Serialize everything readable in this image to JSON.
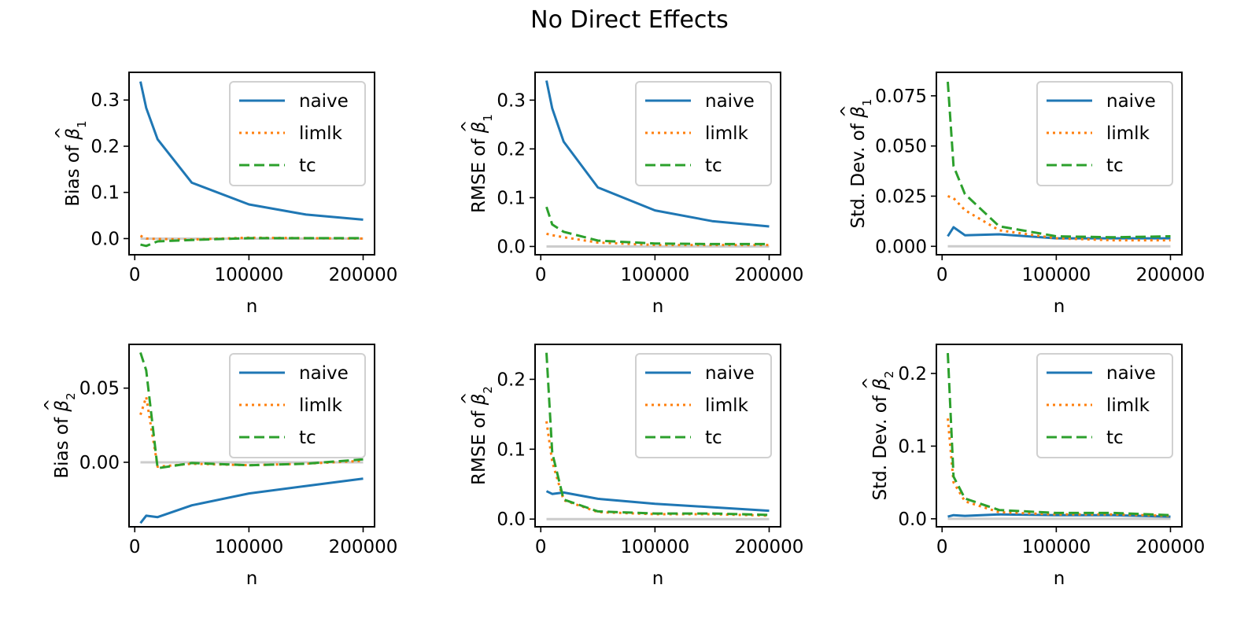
{
  "figure": {
    "title": "No Direct Effects"
  },
  "colors": {
    "naive": "#1f77b4",
    "limlk": "#ff7f0e",
    "tc": "#2ca02c",
    "zero_line": "#cccccc"
  },
  "chart_data": [
    {
      "type": "line",
      "title": "",
      "xlabel": "n",
      "ylabel_prefix": "Bias of",
      "ylabel_symbol": "β",
      "ylabel_hat": "^",
      "ylabel_sub": "1",
      "xlim": [
        -5000,
        210000
      ],
      "ylim": [
        -0.035,
        0.36
      ],
      "xticks": [
        0,
        100000,
        200000
      ],
      "xtick_labels": [
        "0",
        "100000",
        "200000"
      ],
      "yticks": [
        0.0,
        0.1,
        0.2,
        0.3
      ],
      "ytick_labels": [
        "0.0",
        "0.1",
        "0.2",
        "0.3"
      ],
      "legend": "upper right",
      "x": [
        5000,
        10000,
        20000,
        50000,
        100000,
        150000,
        200000
      ],
      "series": [
        {
          "name": "naive",
          "style": "solid",
          "values": [
            0.34,
            0.283,
            0.215,
            0.121,
            0.074,
            0.052,
            0.041
          ]
        },
        {
          "name": "limlk",
          "style": "dotted",
          "values": [
            0.006,
            0.0,
            -0.001,
            -0.002,
            0.002,
            0.001,
            0.0
          ]
        },
        {
          "name": "tc",
          "style": "dashed",
          "values": [
            -0.013,
            -0.016,
            -0.006,
            -0.003,
            0.001,
            0.001,
            0.001
          ]
        }
      ]
    },
    {
      "type": "line",
      "title": "",
      "xlabel": "n",
      "ylabel_prefix": "RMSE of",
      "ylabel_symbol": "β",
      "ylabel_hat": "^",
      "ylabel_sub": "1",
      "xlim": [
        -5000,
        210000
      ],
      "ylim": [
        -0.017,
        0.357
      ],
      "xticks": [
        0,
        100000,
        200000
      ],
      "xtick_labels": [
        "0",
        "100000",
        "200000"
      ],
      "yticks": [
        0.0,
        0.1,
        0.2,
        0.3
      ],
      "ytick_labels": [
        "0.0",
        "0.1",
        "0.2",
        "0.3"
      ],
      "legend": "upper right",
      "x": [
        5000,
        10000,
        20000,
        50000,
        100000,
        150000,
        200000
      ],
      "series": [
        {
          "name": "naive",
          "style": "solid",
          "values": [
            0.34,
            0.283,
            0.215,
            0.121,
            0.074,
            0.052,
            0.041
          ]
        },
        {
          "name": "limlk",
          "style": "dotted",
          "values": [
            0.026,
            0.023,
            0.019,
            0.008,
            0.003,
            0.003,
            0.003
          ]
        },
        {
          "name": "tc",
          "style": "dashed",
          "values": [
            0.081,
            0.045,
            0.03,
            0.012,
            0.006,
            0.005,
            0.005
          ]
        }
      ]
    },
    {
      "type": "line",
      "title": "",
      "xlabel": "n",
      "ylabel_prefix": "Std. Dev. of",
      "ylabel_symbol": "β",
      "ylabel_hat": "^",
      "ylabel_sub": "1",
      "xlim": [
        -5000,
        210000
      ],
      "ylim": [
        -0.0042,
        0.0867
      ],
      "xticks": [
        0,
        100000,
        200000
      ],
      "xtick_labels": [
        "0",
        "100000",
        "200000"
      ],
      "yticks": [
        0.0,
        0.025,
        0.05,
        0.075
      ],
      "ytick_labels": [
        "0.000",
        "0.025",
        "0.050",
        "0.075"
      ],
      "legend": "upper right",
      "x": [
        5000,
        10000,
        20000,
        50000,
        100000,
        150000,
        200000
      ],
      "series": [
        {
          "name": "naive",
          "style": "solid",
          "values": [
            0.005,
            0.0095,
            0.0055,
            0.006,
            0.004,
            0.004,
            0.004
          ]
        },
        {
          "name": "limlk",
          "style": "dotted",
          "values": [
            0.025,
            0.024,
            0.018,
            0.008,
            0.004,
            0.003,
            0.003
          ]
        },
        {
          "name": "tc",
          "style": "dashed",
          "values": [
            0.082,
            0.04,
            0.026,
            0.01,
            0.005,
            0.0045,
            0.005
          ]
        }
      ]
    },
    {
      "type": "line",
      "title": "",
      "xlabel": "n",
      "ylabel_prefix": "Bias of",
      "ylabel_symbol": "β",
      "ylabel_hat": "^",
      "ylabel_sub": "2",
      "xlim": [
        -5000,
        210000
      ],
      "ylim": [
        -0.0435,
        0.0795
      ],
      "xticks": [
        0,
        100000,
        200000
      ],
      "xtick_labels": [
        "0",
        "100000",
        "200000"
      ],
      "yticks": [
        0.0,
        0.05
      ],
      "ytick_labels": [
        "0.00",
        "0.05"
      ],
      "legend": "upper right",
      "x": [
        5000,
        10000,
        20000,
        50000,
        100000,
        150000,
        200000
      ],
      "series": [
        {
          "name": "naive",
          "style": "solid",
          "values": [
            -0.041,
            -0.036,
            -0.037,
            -0.029,
            -0.021,
            -0.016,
            -0.011
          ]
        },
        {
          "name": "limlk",
          "style": "dotted",
          "values": [
            0.032,
            0.044,
            -0.003,
            -0.001,
            -0.002,
            -0.001,
            0.001
          ]
        },
        {
          "name": "tc",
          "style": "dashed",
          "values": [
            0.074,
            0.062,
            -0.004,
            -0.0005,
            -0.002,
            -0.001,
            0.002
          ]
        }
      ]
    },
    {
      "type": "line",
      "title": "",
      "xlabel": "n",
      "ylabel_prefix": "RMSE of",
      "ylabel_symbol": "β",
      "ylabel_hat": "^",
      "ylabel_sub": "2",
      "xlim": [
        -5000,
        210000
      ],
      "ylim": [
        -0.011,
        0.25
      ],
      "xticks": [
        0,
        100000,
        200000
      ],
      "xtick_labels": [
        "0",
        "100000",
        "200000"
      ],
      "yticks": [
        0.0,
        0.1,
        0.2
      ],
      "ytick_labels": [
        "0.0",
        "0.1",
        "0.2"
      ],
      "legend": "upper right",
      "x": [
        5000,
        10000,
        20000,
        50000,
        100000,
        150000,
        200000
      ],
      "series": [
        {
          "name": "naive",
          "style": "solid",
          "values": [
            0.04,
            0.036,
            0.038,
            0.029,
            0.022,
            0.017,
            0.012
          ]
        },
        {
          "name": "limlk",
          "style": "dotted",
          "values": [
            0.14,
            0.082,
            0.027,
            0.01,
            0.007,
            0.007,
            0.005
          ]
        },
        {
          "name": "tc",
          "style": "dashed",
          "values": [
            0.238,
            0.095,
            0.028,
            0.011,
            0.008,
            0.008,
            0.006
          ]
        }
      ]
    },
    {
      "type": "line",
      "title": "",
      "xlabel": "n",
      "ylabel_prefix": "Std. Dev. of",
      "ylabel_symbol": "β",
      "ylabel_hat": "^",
      "ylabel_sub": "2",
      "xlim": [
        -5000,
        210000
      ],
      "ylim": [
        -0.011,
        0.24
      ],
      "xticks": [
        0,
        100000,
        200000
      ],
      "xtick_labels": [
        "0",
        "100000",
        "200000"
      ],
      "yticks": [
        0.0,
        0.1,
        0.2
      ],
      "ytick_labels": [
        "0.0",
        "0.1",
        "0.2"
      ],
      "legend": "upper right",
      "x": [
        5000,
        10000,
        20000,
        50000,
        100000,
        150000,
        200000
      ],
      "series": [
        {
          "name": "naive",
          "style": "solid",
          "values": [
            0.003,
            0.005,
            0.004,
            0.006,
            0.005,
            0.005,
            0.003
          ]
        },
        {
          "name": "limlk",
          "style": "dotted",
          "values": [
            0.138,
            0.05,
            0.024,
            0.009,
            0.006,
            0.006,
            0.004
          ]
        },
        {
          "name": "tc",
          "style": "dashed",
          "values": [
            0.228,
            0.058,
            0.028,
            0.012,
            0.008,
            0.008,
            0.005
          ]
        }
      ]
    }
  ]
}
